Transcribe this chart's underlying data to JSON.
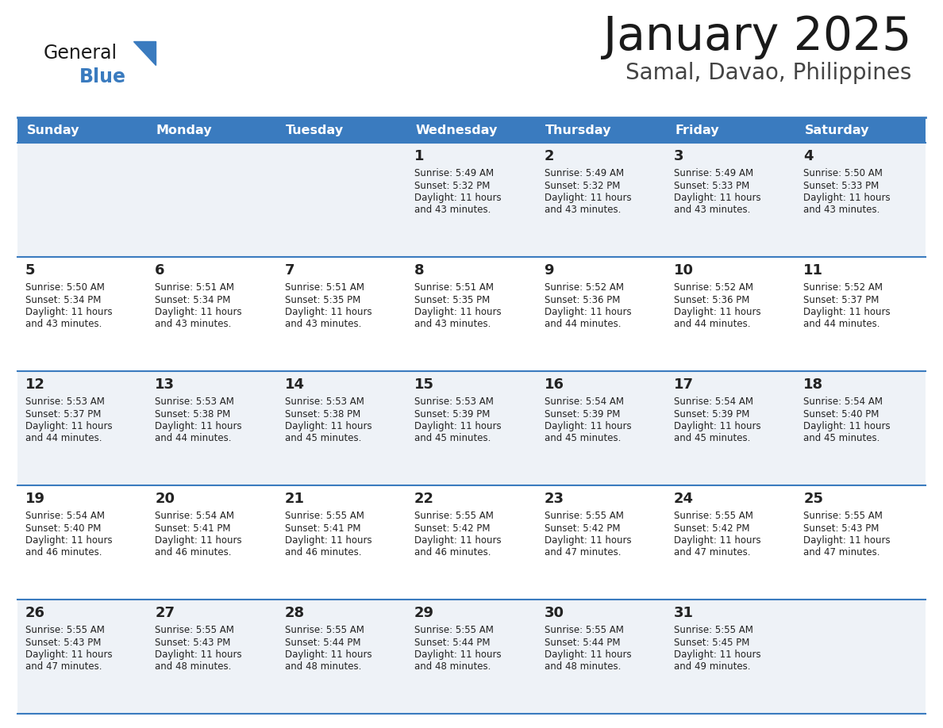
{
  "title": "January 2025",
  "subtitle": "Samal, Davao, Philippines",
  "days_of_week": [
    "Sunday",
    "Monday",
    "Tuesday",
    "Wednesday",
    "Thursday",
    "Friday",
    "Saturday"
  ],
  "header_bg": "#3a7bbf",
  "header_text": "#ffffff",
  "row_bg_odd": "#eef2f7",
  "row_bg_even": "#ffffff",
  "cell_text_color": "#222222",
  "border_color": "#3a7bbf",
  "title_color": "#1a1a1a",
  "subtitle_color": "#444444",
  "logo_color_general": "#1a1a1a",
  "logo_color_blue": "#3a7bbf",
  "calendar": [
    [
      null,
      null,
      null,
      {
        "day": "1",
        "sunrise": "5:49 AM",
        "sunset": "5:32 PM",
        "dl1": "Daylight: 11 hours",
        "dl2": "and 43 minutes."
      },
      {
        "day": "2",
        "sunrise": "5:49 AM",
        "sunset": "5:32 PM",
        "dl1": "Daylight: 11 hours",
        "dl2": "and 43 minutes."
      },
      {
        "day": "3",
        "sunrise": "5:49 AM",
        "sunset": "5:33 PM",
        "dl1": "Daylight: 11 hours",
        "dl2": "and 43 minutes."
      },
      {
        "day": "4",
        "sunrise": "5:50 AM",
        "sunset": "5:33 PM",
        "dl1": "Daylight: 11 hours",
        "dl2": "and 43 minutes."
      }
    ],
    [
      {
        "day": "5",
        "sunrise": "5:50 AM",
        "sunset": "5:34 PM",
        "dl1": "Daylight: 11 hours",
        "dl2": "and 43 minutes."
      },
      {
        "day": "6",
        "sunrise": "5:51 AM",
        "sunset": "5:34 PM",
        "dl1": "Daylight: 11 hours",
        "dl2": "and 43 minutes."
      },
      {
        "day": "7",
        "sunrise": "5:51 AM",
        "sunset": "5:35 PM",
        "dl1": "Daylight: 11 hours",
        "dl2": "and 43 minutes."
      },
      {
        "day": "8",
        "sunrise": "5:51 AM",
        "sunset": "5:35 PM",
        "dl1": "Daylight: 11 hours",
        "dl2": "and 43 minutes."
      },
      {
        "day": "9",
        "sunrise": "5:52 AM",
        "sunset": "5:36 PM",
        "dl1": "Daylight: 11 hours",
        "dl2": "and 44 minutes."
      },
      {
        "day": "10",
        "sunrise": "5:52 AM",
        "sunset": "5:36 PM",
        "dl1": "Daylight: 11 hours",
        "dl2": "and 44 minutes."
      },
      {
        "day": "11",
        "sunrise": "5:52 AM",
        "sunset": "5:37 PM",
        "dl1": "Daylight: 11 hours",
        "dl2": "and 44 minutes."
      }
    ],
    [
      {
        "day": "12",
        "sunrise": "5:53 AM",
        "sunset": "5:37 PM",
        "dl1": "Daylight: 11 hours",
        "dl2": "and 44 minutes."
      },
      {
        "day": "13",
        "sunrise": "5:53 AM",
        "sunset": "5:38 PM",
        "dl1": "Daylight: 11 hours",
        "dl2": "and 44 minutes."
      },
      {
        "day": "14",
        "sunrise": "5:53 AM",
        "sunset": "5:38 PM",
        "dl1": "Daylight: 11 hours",
        "dl2": "and 45 minutes."
      },
      {
        "day": "15",
        "sunrise": "5:53 AM",
        "sunset": "5:39 PM",
        "dl1": "Daylight: 11 hours",
        "dl2": "and 45 minutes."
      },
      {
        "day": "16",
        "sunrise": "5:54 AM",
        "sunset": "5:39 PM",
        "dl1": "Daylight: 11 hours",
        "dl2": "and 45 minutes."
      },
      {
        "day": "17",
        "sunrise": "5:54 AM",
        "sunset": "5:39 PM",
        "dl1": "Daylight: 11 hours",
        "dl2": "and 45 minutes."
      },
      {
        "day": "18",
        "sunrise": "5:54 AM",
        "sunset": "5:40 PM",
        "dl1": "Daylight: 11 hours",
        "dl2": "and 45 minutes."
      }
    ],
    [
      {
        "day": "19",
        "sunrise": "5:54 AM",
        "sunset": "5:40 PM",
        "dl1": "Daylight: 11 hours",
        "dl2": "and 46 minutes."
      },
      {
        "day": "20",
        "sunrise": "5:54 AM",
        "sunset": "5:41 PM",
        "dl1": "Daylight: 11 hours",
        "dl2": "and 46 minutes."
      },
      {
        "day": "21",
        "sunrise": "5:55 AM",
        "sunset": "5:41 PM",
        "dl1": "Daylight: 11 hours",
        "dl2": "and 46 minutes."
      },
      {
        "day": "22",
        "sunrise": "5:55 AM",
        "sunset": "5:42 PM",
        "dl1": "Daylight: 11 hours",
        "dl2": "and 46 minutes."
      },
      {
        "day": "23",
        "sunrise": "5:55 AM",
        "sunset": "5:42 PM",
        "dl1": "Daylight: 11 hours",
        "dl2": "and 47 minutes."
      },
      {
        "day": "24",
        "sunrise": "5:55 AM",
        "sunset": "5:42 PM",
        "dl1": "Daylight: 11 hours",
        "dl2": "and 47 minutes."
      },
      {
        "day": "25",
        "sunrise": "5:55 AM",
        "sunset": "5:43 PM",
        "dl1": "Daylight: 11 hours",
        "dl2": "and 47 minutes."
      }
    ],
    [
      {
        "day": "26",
        "sunrise": "5:55 AM",
        "sunset": "5:43 PM",
        "dl1": "Daylight: 11 hours",
        "dl2": "and 47 minutes."
      },
      {
        "day": "27",
        "sunrise": "5:55 AM",
        "sunset": "5:43 PM",
        "dl1": "Daylight: 11 hours",
        "dl2": "and 48 minutes."
      },
      {
        "day": "28",
        "sunrise": "5:55 AM",
        "sunset": "5:44 PM",
        "dl1": "Daylight: 11 hours",
        "dl2": "and 48 minutes."
      },
      {
        "day": "29",
        "sunrise": "5:55 AM",
        "sunset": "5:44 PM",
        "dl1": "Daylight: 11 hours",
        "dl2": "and 48 minutes."
      },
      {
        "day": "30",
        "sunrise": "5:55 AM",
        "sunset": "5:44 PM",
        "dl1": "Daylight: 11 hours",
        "dl2": "and 48 minutes."
      },
      {
        "day": "31",
        "sunrise": "5:55 AM",
        "sunset": "5:45 PM",
        "dl1": "Daylight: 11 hours",
        "dl2": "and 49 minutes."
      },
      null
    ]
  ]
}
